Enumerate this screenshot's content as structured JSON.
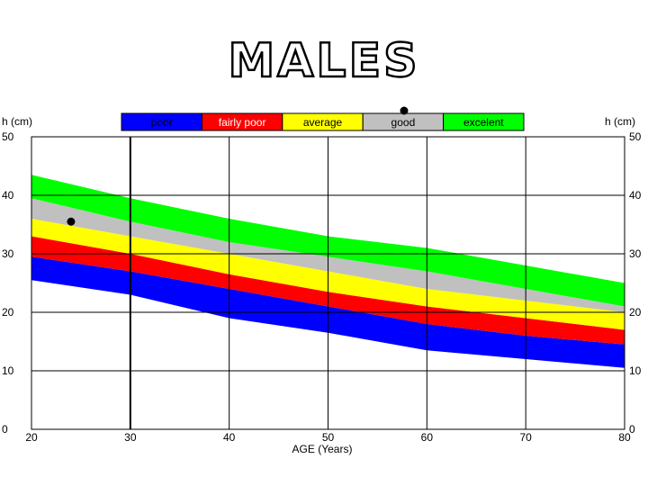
{
  "chart_data": {
    "type": "area",
    "title": "MALES",
    "xlabel": "AGE (Years)",
    "ylabel_left": "h (cm)",
    "ylabel_right": "h (cm)",
    "xlim": [
      20,
      80
    ],
    "ylim": [
      0,
      50
    ],
    "x_ticks": [
      20,
      30,
      40,
      50,
      60,
      70,
      80
    ],
    "y_ticks": [
      0,
      10,
      20,
      30,
      40,
      50
    ],
    "grid": true,
    "highlight_x": 30,
    "legend_position": "top",
    "x": [
      20,
      30,
      40,
      50,
      60,
      70,
      80
    ],
    "bands": [
      {
        "name": "poor",
        "color": "#0000ff",
        "lower": [
          25.5,
          23,
          19,
          16.5,
          13.5,
          12,
          10.5
        ],
        "upper": [
          29.5,
          27,
          24,
          21,
          18,
          16,
          14.5
        ]
      },
      {
        "name": "fairly poor",
        "color": "#ff0000",
        "lower": [
          29.5,
          27,
          24,
          21,
          18,
          16,
          14.5
        ],
        "upper": [
          33,
          30,
          26.5,
          23.5,
          21,
          19,
          17
        ]
      },
      {
        "name": "average",
        "color": "#ffff00",
        "lower": [
          33,
          30,
          26.5,
          23.5,
          21,
          19,
          17
        ],
        "upper": [
          36,
          33,
          30,
          27,
          24,
          22,
          20
        ]
      },
      {
        "name": "good",
        "color": "#c0c0c0",
        "lower": [
          36,
          33,
          30,
          27,
          24,
          22,
          20
        ],
        "upper": [
          39.5,
          35.5,
          32,
          29.5,
          27,
          24,
          21
        ]
      },
      {
        "name": "excelent",
        "color": "#00ff00",
        "lower": [
          39.5,
          35.5,
          32,
          29.5,
          27,
          24,
          21
        ],
        "upper": [
          43.5,
          39.5,
          36,
          33,
          31,
          28,
          25
        ]
      }
    ],
    "point": {
      "x": 24,
      "y": 35.5
    }
  }
}
